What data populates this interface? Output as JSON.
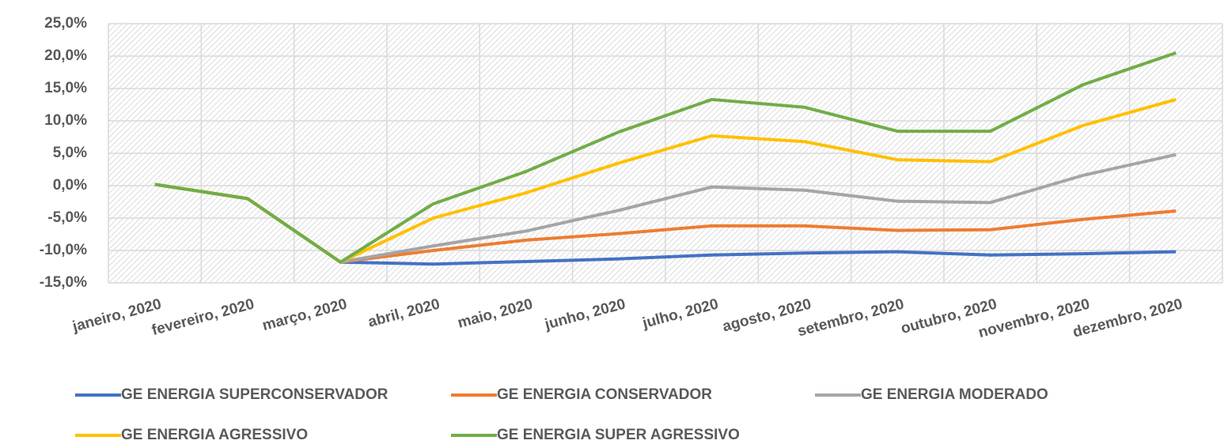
{
  "chart_data": {
    "type": "line",
    "categories": [
      "janeiro, 2020",
      "fevereiro, 2020",
      "março, 2020",
      "abril, 2020",
      "maio, 2020",
      "junho, 2020",
      "julho, 2020",
      "agosto, 2020",
      "setembro, 2020",
      "outubro, 2020",
      "novembro, 2020",
      "dezembro, 2020"
    ],
    "series": [
      {
        "name": "GE ENERGIA SUPERCONSERVADOR",
        "color": "#4472c4",
        "values": [
          0.2,
          -2.0,
          -11.8,
          -12.1,
          -11.7,
          -11.3,
          -10.7,
          -10.4,
          -10.2,
          -10.7,
          -10.5,
          -10.2
        ]
      },
      {
        "name": "GE ENERGIA CONSERVADOR",
        "color": "#ed7d31",
        "values": [
          0.2,
          -2.0,
          -11.8,
          -10.0,
          -8.4,
          -7.4,
          -6.2,
          -6.2,
          -6.9,
          -6.8,
          -5.2,
          -3.9
        ]
      },
      {
        "name": "GE ENERGIA MODERADO",
        "color": "#a5a5a5",
        "values": [
          0.2,
          -2.0,
          -11.8,
          -9.3,
          -7.0,
          -3.8,
          -0.2,
          -0.7,
          -2.4,
          -2.6,
          1.6,
          4.8
        ]
      },
      {
        "name": "GE ENERGIA AGRESSIVO",
        "color": "#ffc000",
        "values": [
          0.2,
          -2.0,
          -11.8,
          -5.0,
          -1.1,
          3.5,
          7.7,
          6.8,
          4.0,
          3.7,
          9.3,
          13.3
        ]
      },
      {
        "name": "GE ENERGIA SUPER AGRESSIVO",
        "color": "#70ad47",
        "values": [
          0.2,
          -2.0,
          -11.8,
          -2.8,
          2.2,
          8.3,
          13.3,
          12.1,
          8.4,
          8.4,
          15.6,
          20.5
        ]
      }
    ],
    "ylim": [
      -15,
      25
    ],
    "yticks": [
      {
        "value": -15,
        "label": "-15,0%"
      },
      {
        "value": -10,
        "label": "-10,0%"
      },
      {
        "value": -5,
        "label": "-5,0%"
      },
      {
        "value": 0,
        "label": "0,0%"
      },
      {
        "value": 5,
        "label": "5,0%"
      },
      {
        "value": 10,
        "label": "10,0%"
      },
      {
        "value": 15,
        "label": "15,0%"
      },
      {
        "value": 20,
        "label": "20,0%"
      },
      {
        "value": 25,
        "label": "25,0%"
      }
    ],
    "grid": true,
    "legend": "bottom"
  }
}
